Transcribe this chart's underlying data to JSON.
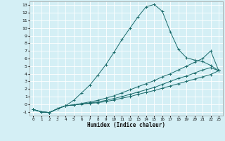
{
  "xlabel": "Humidex (Indice chaleur)",
  "bg_color": "#d4eff5",
  "grid_color": "#ffffff",
  "line_color": "#1a6b6b",
  "xlim": [
    -0.5,
    23.5
  ],
  "ylim": [
    -1.5,
    13.5
  ],
  "xticks": [
    0,
    1,
    2,
    3,
    4,
    5,
    6,
    7,
    8,
    9,
    10,
    11,
    12,
    13,
    14,
    15,
    16,
    17,
    18,
    19,
    20,
    21,
    22,
    23
  ],
  "yticks": [
    -1,
    0,
    1,
    2,
    3,
    4,
    5,
    6,
    7,
    8,
    9,
    10,
    11,
    12,
    13
  ],
  "curve1_x": [
    0,
    1,
    2,
    3,
    4,
    5,
    6,
    7,
    8,
    9,
    10,
    11,
    12,
    13,
    14,
    15,
    16,
    17,
    18,
    19,
    20,
    21,
    22,
    23
  ],
  "curve1_y": [
    -0.7,
    -1.0,
    -1.1,
    -0.6,
    -0.2,
    0.5,
    1.5,
    2.5,
    3.8,
    5.2,
    6.8,
    8.5,
    10.0,
    11.5,
    12.8,
    13.1,
    12.2,
    9.5,
    7.2,
    6.1,
    5.8,
    5.6,
    5.1,
    4.4
  ],
  "curve2_x": [
    0,
    1,
    2,
    3,
    4,
    5,
    6,
    7,
    8,
    9,
    10,
    11,
    12,
    13,
    14,
    15,
    16,
    17,
    18,
    19,
    20,
    21,
    22,
    23
  ],
  "curve2_y": [
    -0.7,
    -1.0,
    -1.1,
    -0.6,
    -0.2,
    -0.1,
    0.1,
    0.3,
    0.5,
    0.8,
    1.1,
    1.5,
    1.9,
    2.3,
    2.7,
    3.1,
    3.6,
    4.0,
    4.5,
    5.0,
    5.5,
    6.0,
    7.0,
    4.4
  ],
  "curve3_x": [
    0,
    1,
    2,
    3,
    4,
    5,
    6,
    7,
    8,
    9,
    10,
    11,
    12,
    13,
    14,
    15,
    16,
    17,
    18,
    19,
    20,
    21,
    22,
    23
  ],
  "curve3_y": [
    -0.7,
    -1.0,
    -1.1,
    -0.6,
    -0.2,
    -0.1,
    0.05,
    0.15,
    0.3,
    0.5,
    0.75,
    1.0,
    1.3,
    1.6,
    1.9,
    2.2,
    2.6,
    3.0,
    3.4,
    3.7,
    4.1,
    4.5,
    4.8,
    4.4
  ],
  "curve4_x": [
    0,
    1,
    2,
    3,
    4,
    5,
    6,
    7,
    8,
    9,
    10,
    11,
    12,
    13,
    14,
    15,
    16,
    17,
    18,
    19,
    20,
    21,
    22,
    23
  ],
  "curve4_y": [
    -0.7,
    -1.0,
    -1.1,
    -0.6,
    -0.2,
    -0.1,
    0.0,
    0.1,
    0.2,
    0.35,
    0.55,
    0.8,
    1.0,
    1.3,
    1.55,
    1.8,
    2.1,
    2.4,
    2.7,
    3.0,
    3.3,
    3.6,
    3.9,
    4.4
  ]
}
